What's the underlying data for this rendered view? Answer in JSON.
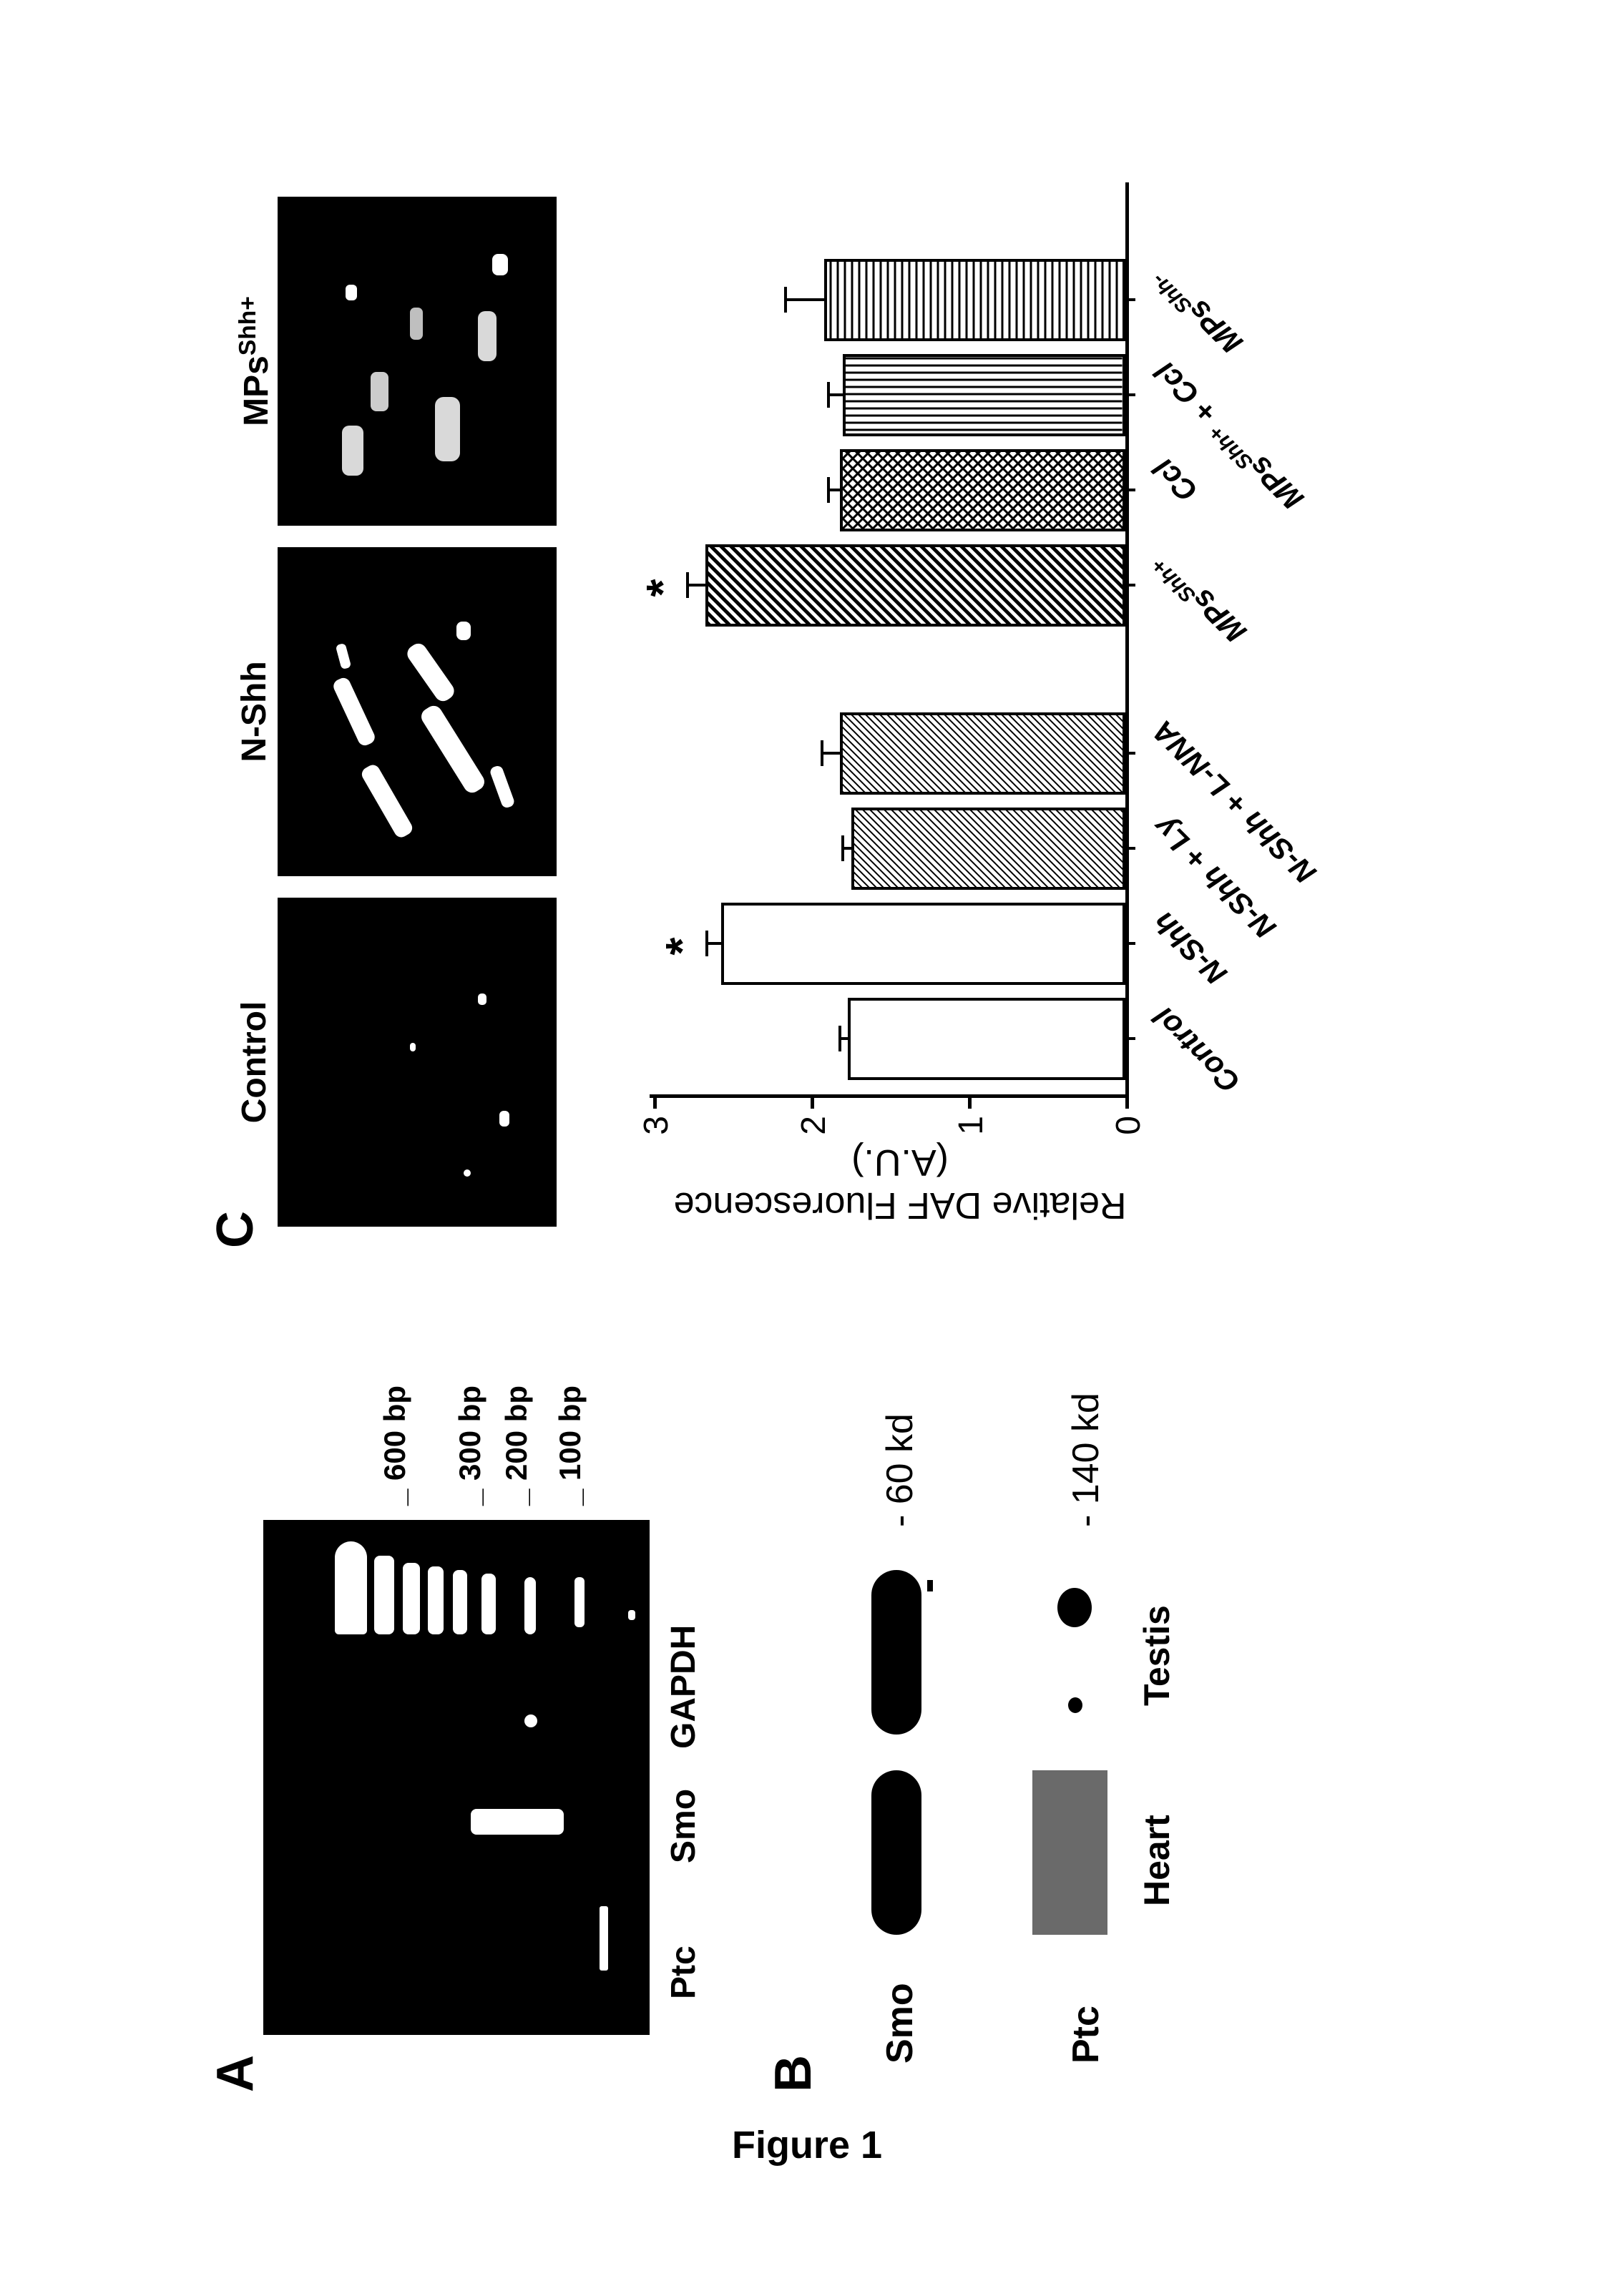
{
  "figure_caption": "Figure 1",
  "panel_labels": {
    "A": "A",
    "B": "B",
    "C": "C"
  },
  "panel_a": {
    "lane_labels": [
      "Ptc",
      "Smo",
      "GAPDH"
    ],
    "bp_labels": [
      "600 bp",
      "300 bp",
      "200 bp",
      "100 bp"
    ],
    "gel_bg": "#000000",
    "band_color": "#ffffff"
  },
  "panel_b": {
    "rows": [
      {
        "label": "Smo",
        "kd": "- 60 kd"
      },
      {
        "label": "Ptc",
        "kd": "- 140 kd"
      }
    ],
    "lane_labels": [
      "Heart",
      "Testis"
    ]
  },
  "panel_c": {
    "images": [
      "Control",
      "N-Shh",
      "MPsShh+"
    ],
    "image_bg": "#000000",
    "speck_color": "#ffffff"
  },
  "chart": {
    "type": "bar",
    "y_title_line1": "Relative DAF Fluorescence",
    "y_title_line2": "(A.U.)",
    "ylim": [
      0,
      3
    ],
    "yticks": [
      0,
      1,
      2,
      3
    ],
    "categories": [
      "Control",
      "N-Shh",
      "N-Shh + Ly",
      "N-Shh + L-NNA",
      "MPsShh+",
      "Ccl",
      "MPsShh+ + Ccl",
      "MPsShh-"
    ],
    "values": [
      1.75,
      2.55,
      1.73,
      1.8,
      2.65,
      1.8,
      1.78,
      1.9
    ],
    "errors": [
      0.06,
      0.1,
      0.06,
      0.12,
      0.12,
      0.08,
      0.1,
      0.25
    ],
    "significant": [
      false,
      true,
      false,
      false,
      true,
      false,
      false,
      false
    ],
    "sig_marker": "*",
    "pattern": [
      "none",
      "none",
      "diag-dense",
      "diag-dense",
      "diag-bold",
      "crosshatch",
      "vertical",
      "horizontal"
    ],
    "bar_border": "#000000",
    "background_color": "#ffffff",
    "axis_color": "#000000",
    "title_fontsize": 52,
    "tick_fontsize": 48,
    "label_fontsize": 42,
    "bar_group_gap_after": 3
  },
  "fonts": {
    "panel_label_size": 72,
    "gel_label_size": 48,
    "bp_label_size": 42,
    "wb_label_size": 52,
    "micro_title_size": 48,
    "caption_size": 54
  }
}
